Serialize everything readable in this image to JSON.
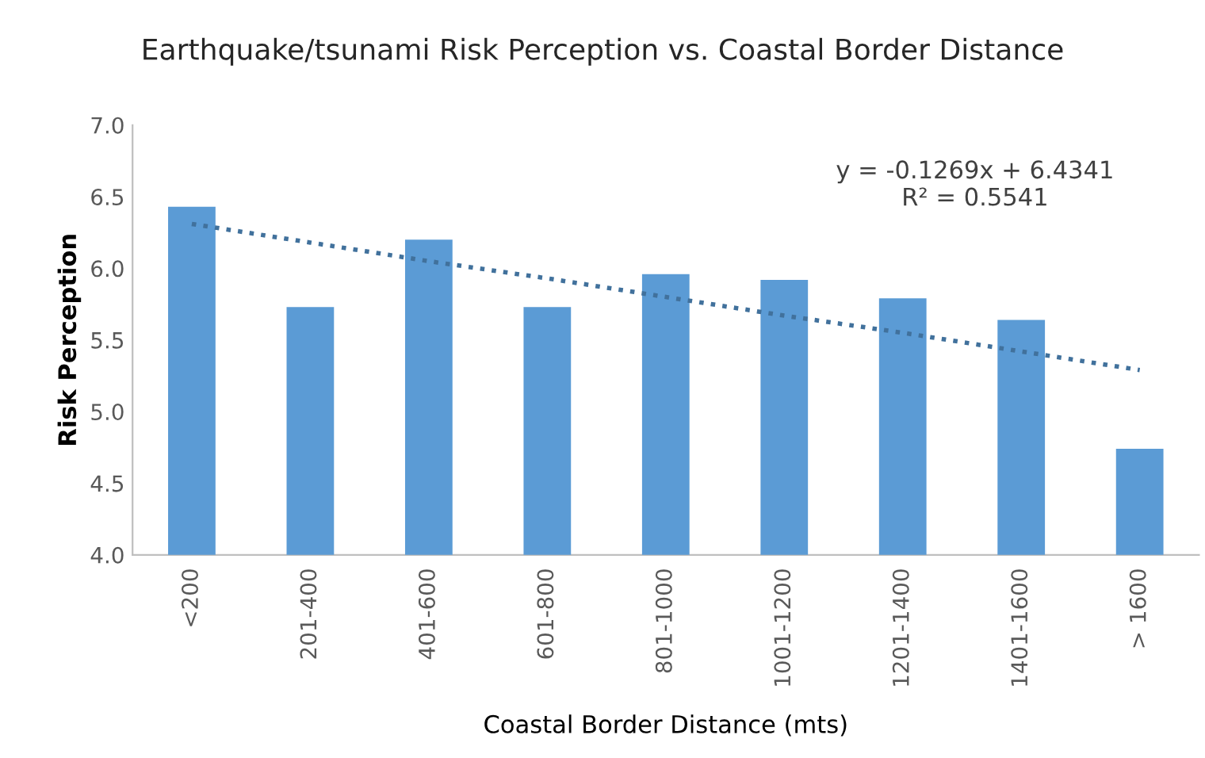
{
  "chart_data": {
    "type": "bar",
    "title": "Earthquake/tsunami Risk Perception vs. Coastal Border Distance",
    "xlabel": "Coastal Border Distance (mts)",
    "ylabel": "Risk Perception",
    "categories": [
      "<200",
      "201-400",
      "401-600",
      "601-800",
      "801-1000",
      "1001-1200",
      "1201-1400",
      "1401-1600",
      "> 1600"
    ],
    "series": [
      {
        "color": "#5b9bd5",
        "values": [
          6.43,
          5.73,
          6.2,
          5.73,
          5.96,
          5.92,
          5.79,
          5.64,
          4.74
        ]
      },
      {
        "type": "line",
        "color": "#41719c",
        "line_style": "dotted",
        "values": [
          6.31,
          6.18,
          6.05,
          5.93,
          5.8,
          5.67,
          5.55,
          5.42,
          5.29
        ]
      }
    ],
    "annotations": [
      "y = -0.1269x + 6.4341\nR² = 0.5541"
    ],
    "ylim": [
      4.0,
      7.0
    ],
    "yticks": [
      {
        "value": 4.0,
        "label": "4.0"
      },
      {
        "value": 4.5,
        "label": "4.5"
      },
      {
        "value": 5.0,
        "label": "5.0"
      },
      {
        "value": 5.5,
        "label": "5.5"
      },
      {
        "value": 6.0,
        "label": "6.0"
      },
      {
        "value": 6.5,
        "label": "6.5"
      },
      {
        "value": 7.0,
        "label": "7.0"
      }
    ],
    "grid": false,
    "legend": false
  }
}
